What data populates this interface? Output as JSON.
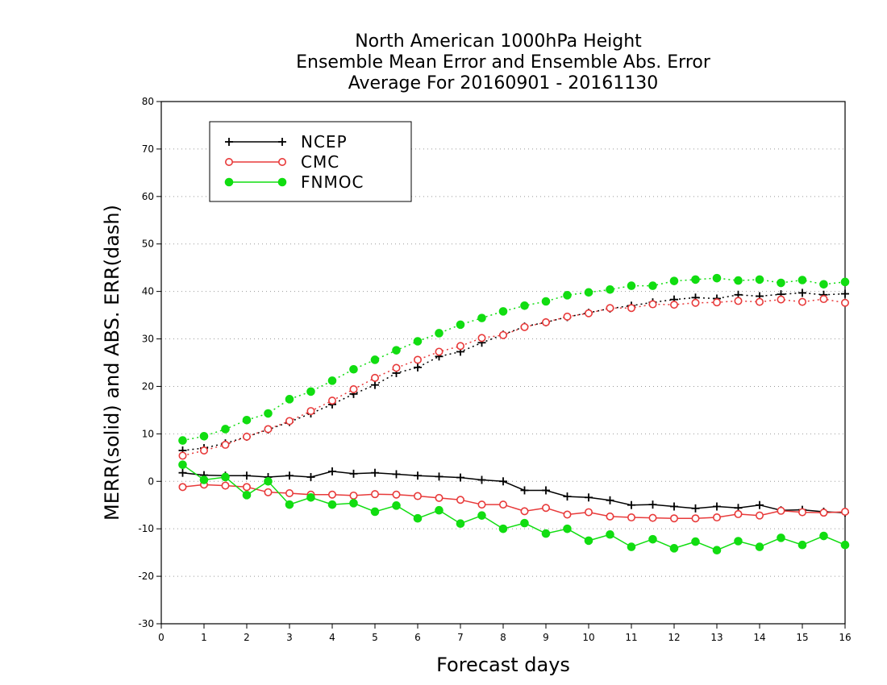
{
  "chart_data": {
    "type": "line",
    "title": [
      "North American 1000hPa Height",
      "Ensemble Mean Error and Ensemble Abs. Error",
      "Average For 20160901 - 20161130"
    ],
    "xlabel": "Forecast days",
    "ylabel": "MERR(solid) and ABS. ERR(dash)",
    "xlim": [
      0,
      16
    ],
    "ylim": [
      -30,
      80
    ],
    "xticks": [
      0,
      1,
      2,
      3,
      4,
      5,
      6,
      7,
      8,
      9,
      10,
      11,
      12,
      13,
      14,
      15,
      16
    ],
    "yticks": [
      -30,
      -20,
      -10,
      0,
      10,
      20,
      30,
      40,
      50,
      60,
      70,
      80
    ],
    "grid": "horizontal dotted",
    "legend_position": "top-left",
    "x": [
      0.5,
      1,
      1.5,
      2,
      2.5,
      3,
      3.5,
      4,
      4.5,
      5,
      5.5,
      6,
      6.5,
      7,
      7.5,
      8,
      8.5,
      9,
      9.5,
      10,
      10.5,
      11,
      11.5,
      12,
      12.5,
      13,
      13.5,
      14,
      14.5,
      15,
      15.5,
      16
    ],
    "series": [
      {
        "name": "NCEP",
        "color": "#000000",
        "marker": "plus",
        "merr": [
          1.8,
          1.3,
          1.2,
          1.2,
          0.9,
          1.2,
          0.9,
          2.1,
          1.6,
          1.8,
          1.5,
          1.2,
          1.0,
          0.8,
          0.3,
          0.0,
          -1.9,
          -1.9,
          -3.2,
          -3.4,
          -4.0,
          -5.0,
          -4.9,
          -5.3,
          -5.7,
          -5.3,
          -5.6,
          -5.0,
          -6.1,
          -6.0,
          -6.4,
          -6.6
        ],
        "abs_err": [
          6.5,
          7.0,
          8.0,
          9.4,
          10.9,
          12.5,
          14.3,
          16.2,
          18.4,
          20.3,
          22.8,
          24.0,
          26.3,
          27.3,
          29.2,
          30.9,
          32.6,
          33.5,
          34.6,
          35.5,
          36.4,
          37.0,
          37.7,
          38.3,
          38.7,
          38.5,
          39.3,
          39.0,
          39.4,
          39.7,
          39.3,
          39.5
        ]
      },
      {
        "name": "CMC",
        "color": "#e83a3a",
        "marker": "open-circle",
        "merr": [
          -1.2,
          -0.7,
          -0.9,
          -1.2,
          -2.3,
          -2.5,
          -2.8,
          -2.8,
          -3.0,
          -2.7,
          -2.8,
          -3.1,
          -3.5,
          -3.9,
          -4.9,
          -4.9,
          -6.3,
          -5.6,
          -7.0,
          -6.5,
          -7.4,
          -7.6,
          -7.7,
          -7.8,
          -7.8,
          -7.6,
          -6.9,
          -7.2,
          -6.2,
          -6.5,
          -6.6,
          -6.4
        ],
        "abs_err": [
          5.4,
          6.5,
          7.7,
          9.4,
          11.0,
          12.7,
          14.8,
          17.0,
          19.4,
          21.8,
          23.9,
          25.6,
          27.3,
          28.5,
          30.2,
          30.8,
          32.5,
          33.5,
          34.7,
          35.4,
          36.5,
          36.5,
          37.3,
          37.2,
          37.6,
          37.7,
          38.0,
          37.8,
          38.3,
          37.8,
          38.4,
          37.6
        ]
      },
      {
        "name": "FNMOC",
        "color": "#11dd11",
        "marker": "filled-circle",
        "merr": [
          3.5,
          0.3,
          0.9,
          -2.9,
          0.0,
          -4.9,
          -3.4,
          -4.9,
          -4.6,
          -6.4,
          -5.1,
          -7.8,
          -6.1,
          -8.9,
          -7.2,
          -10.0,
          -8.8,
          -11.0,
          -10.0,
          -12.5,
          -11.2,
          -13.8,
          -12.2,
          -14.1,
          -12.7,
          -14.5,
          -12.6,
          -13.8,
          -11.9,
          -13.4,
          -11.5,
          -13.4
        ],
        "abs_err": [
          8.6,
          9.5,
          11.0,
          12.9,
          14.3,
          17.3,
          18.9,
          21.2,
          23.6,
          25.6,
          27.6,
          29.5,
          31.2,
          33.0,
          34.4,
          35.8,
          37.0,
          37.9,
          39.2,
          39.8,
          40.4,
          41.2,
          41.2,
          42.2,
          42.5,
          42.8,
          42.3,
          42.5,
          41.8,
          42.4,
          41.5,
          42.0
        ]
      }
    ]
  }
}
